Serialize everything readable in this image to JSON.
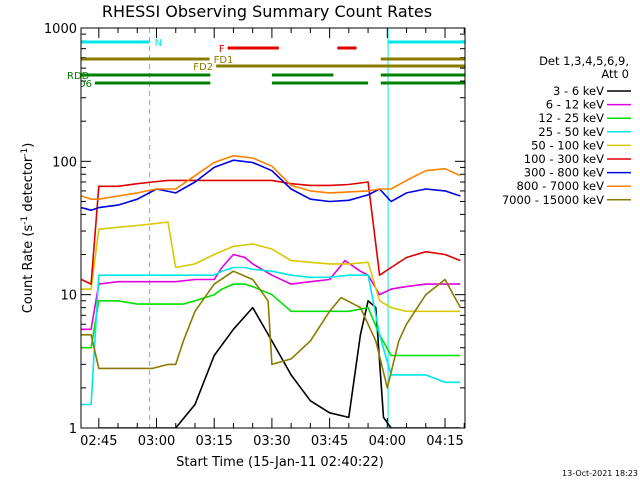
{
  "chart_data": {
    "type": "line",
    "title": "RHESSI Observing Summary Count Rates",
    "xlabel": "Start Time (15-Jan-11 02:40:22)",
    "ylabel_parts": {
      "pre": "Count Rate (s",
      "sup1": "-1",
      "mid": " detector",
      "sup2": "-1",
      "post": ")"
    },
    "y_scale": "log",
    "ylim": [
      1,
      1000
    ],
    "y_ticks": [
      {
        "value": 1,
        "label": "1"
      },
      {
        "value": 10,
        "label": "10"
      },
      {
        "value": 100,
        "label": "100"
      },
      {
        "value": 1000,
        "label": "1000"
      }
    ],
    "xlim": [
      -4.63,
      95.2
    ],
    "x_unit": "minutes after 02:45",
    "x_ticks": [
      {
        "value": 0,
        "label": "02:45"
      },
      {
        "value": 15,
        "label": "03:00"
      },
      {
        "value": 30,
        "label": "03:15"
      },
      {
        "value": 45,
        "label": "03:30"
      },
      {
        "value": 60,
        "label": "03:45"
      },
      {
        "value": 75,
        "label": "04:00"
      },
      {
        "value": 90,
        "label": "04:15"
      }
    ],
    "legend": {
      "position": "right",
      "header": [
        "Det 1,3,4,5,6,9,",
        "Att 0"
      ],
      "entries": [
        {
          "label": "3 - 6 keV",
          "color": "#000000"
        },
        {
          "label": "6 - 12 keV",
          "color": "#e000e0"
        },
        {
          "label": "12 - 25 keV",
          "color": "#00e000"
        },
        {
          "label": "25 - 50 keV",
          "color": "#00e8e8"
        },
        {
          "label": "50 - 100 keV",
          "color": "#d8c800"
        },
        {
          "label": "100 - 300 keV",
          "color": "#e00000"
        },
        {
          "label": "300 - 800 keV",
          "color": "#0000e0"
        },
        {
          "label": "800 - 7000 keV",
          "color": "#ff8000"
        },
        {
          "label": "7000 - 15000 keV",
          "color": "#8a7a00"
        }
      ]
    },
    "flags": {
      "N": {
        "label": "N",
        "color": "#00e8e8",
        "intervals": [
          [
            -4.63,
            13.2
          ],
          [
            75.2,
            95.2
          ]
        ]
      },
      "F": {
        "label": "F",
        "color": "#e00000",
        "intervals": [
          [
            33.5,
            46.8
          ],
          [
            62.0,
            67.0
          ]
        ]
      },
      "FD1": {
        "label": "FD1",
        "color": "#8a7a00",
        "intervals": [
          [
            -4.63,
            28.8
          ],
          [
            73.3,
            95.2
          ]
        ]
      },
      "FD2": {
        "label": "FD2",
        "color": "#8a7a00",
        "intervals": [
          [
            30.5,
            95.2
          ]
        ]
      },
      "RDD": {
        "label": "RDD",
        "color": "#008000",
        "intervals": [
          [
            -4.63,
            29.0
          ],
          [
            45.0,
            61.0
          ],
          [
            73.3,
            95.2
          ]
        ]
      },
      "RD6": {
        "label": "RD6",
        "color": "#008000",
        "intervals": [
          [
            -1.0,
            29.0
          ],
          [
            45.0,
            70.0
          ],
          [
            73.3,
            95.2
          ]
        ]
      }
    },
    "vertical_lines": {
      "dashed": [
        13.2,
        95.2
      ],
      "solid": [
        -4.63,
        75.2
      ],
      "color": "#00e8e8"
    },
    "series": [
      {
        "name": "3 - 6 keV",
        "color": "#000000",
        "x": [
          0,
          10,
          20,
          25,
          30,
          35,
          40,
          45,
          50,
          55,
          60,
          65,
          68,
          70,
          72,
          74,
          76,
          80,
          85,
          90,
          94
        ],
        "y": [
          1.0,
          1.0,
          1.0,
          1.5,
          3.5,
          5.5,
          8.0,
          4.5,
          2.5,
          1.6,
          1.3,
          1.2,
          5.0,
          9.0,
          8.0,
          1.2,
          1.0,
          1.0,
          1.0,
          1.0,
          1.0
        ]
      },
      {
        "name": "6 - 12 keV",
        "color": "#e000e0",
        "x": [
          -4.5,
          -2,
          0,
          5,
          10,
          15,
          20,
          25,
          30,
          32,
          35,
          38,
          40,
          45,
          50,
          55,
          60,
          64,
          68,
          70,
          73,
          76,
          80,
          85,
          90,
          94
        ],
        "y": [
          5.5,
          5.5,
          12,
          12.5,
          12.5,
          12.5,
          12.5,
          13,
          13,
          16,
          20,
          19,
          17,
          14,
          12,
          12.5,
          13,
          18,
          15,
          14,
          10,
          11,
          11.5,
          12,
          12,
          12
        ]
      },
      {
        "name": "12 - 25 keV",
        "color": "#00e000",
        "x": [
          -4.5,
          -2,
          0,
          5,
          10,
          15,
          20,
          22,
          25,
          30,
          32,
          35,
          38,
          40,
          45,
          50,
          55,
          60,
          65,
          70,
          73,
          76,
          80,
          85,
          90,
          94
        ],
        "y": [
          4,
          4,
          9,
          9,
          8.5,
          8.5,
          8.5,
          8.5,
          9,
          10,
          11,
          12,
          12,
          11.5,
          10,
          7.5,
          7.5,
          7.5,
          7.5,
          8,
          5,
          3.5,
          3.5,
          3.5,
          3.5,
          3.5
        ]
      },
      {
        "name": "25 - 50 keV",
        "color": "#00e8e8",
        "x": [
          -4.5,
          -2,
          0,
          5,
          10,
          15,
          20,
          25,
          30,
          32,
          35,
          38,
          40,
          45,
          50,
          55,
          60,
          65,
          70,
          73,
          76,
          80,
          85,
          90,
          94
        ],
        "y": [
          1.5,
          1.5,
          14,
          14,
          14,
          14,
          14,
          14,
          14,
          15,
          16,
          16,
          15.5,
          15,
          14,
          13.5,
          13.5,
          14,
          14,
          5,
          2.5,
          2.5,
          2.5,
          2.2,
          2.2
        ]
      },
      {
        "name": "50 - 100 keV",
        "color": "#d8c800",
        "x": [
          -4.5,
          -2,
          0,
          5,
          10,
          14,
          18,
          20,
          25,
          30,
          35,
          40,
          45,
          50,
          55,
          60,
          65,
          70,
          73,
          76,
          80,
          85,
          90,
          94
        ],
        "y": [
          11,
          11,
          31,
          32,
          33,
          34,
          35,
          16,
          17,
          20,
          23,
          24,
          22,
          18,
          17.5,
          17,
          17,
          17.5,
          9,
          8,
          7.5,
          7.5,
          7.5,
          7.5
        ]
      },
      {
        "name": "100 - 300 keV",
        "color": "#e00000",
        "x": [
          -4.5,
          -2,
          0,
          5,
          10,
          14,
          18,
          20,
          25,
          30,
          35,
          40,
          44,
          45,
          50,
          55,
          60,
          65,
          70,
          73,
          76,
          80,
          85,
          90,
          94
        ],
        "y": [
          13,
          12,
          65,
          65,
          68,
          70,
          72,
          72,
          72,
          72,
          72,
          72,
          72,
          72,
          68,
          66,
          66,
          67,
          70,
          14,
          16,
          19,
          21,
          20,
          18
        ]
      },
      {
        "name": "300 - 800 keV",
        "color": "#0000e0",
        "x": [
          -4.5,
          -2,
          0,
          5,
          10,
          15,
          20,
          25,
          30,
          35,
          40,
          45,
          50,
          55,
          60,
          65,
          70,
          73,
          76,
          80,
          85,
          90,
          94
        ],
        "y": [
          45,
          43,
          45,
          47,
          52,
          62,
          58,
          70,
          90,
          102,
          98,
          85,
          62,
          52,
          50,
          51,
          56,
          62,
          50,
          58,
          62,
          60,
          55
        ]
      },
      {
        "name": "800 - 7000 keV",
        "color": "#ff8000",
        "x": [
          -4.5,
          -2,
          0,
          5,
          10,
          15,
          20,
          25,
          30,
          35,
          40,
          45,
          50,
          55,
          60,
          65,
          70,
          73,
          76,
          80,
          85,
          90,
          94
        ],
        "y": [
          55,
          52,
          52,
          55,
          58,
          62,
          62,
          78,
          98,
          110,
          106,
          92,
          66,
          60,
          58,
          59,
          60,
          62,
          62,
          72,
          85,
          88,
          78
        ]
      },
      {
        "name": "7000 - 15000 keV",
        "color": "#8a7a00",
        "x": [
          -4.5,
          -2,
          0,
          5,
          10,
          14,
          18,
          20,
          22,
          25,
          30,
          35,
          40,
          44,
          45,
          50,
          55,
          60,
          63,
          68,
          72,
          75,
          78,
          80,
          85,
          90,
          94
        ],
        "y": [
          5,
          5,
          2.8,
          2.8,
          2.8,
          2.8,
          3.0,
          3.0,
          4.5,
          7.5,
          12,
          15,
          13,
          9,
          3.0,
          3.3,
          4.5,
          7.5,
          9.5,
          8,
          4.5,
          2.0,
          4.5,
          6,
          10,
          13,
          8
        ]
      }
    ]
  },
  "timestamp": "13-Oct-2021 18:23"
}
